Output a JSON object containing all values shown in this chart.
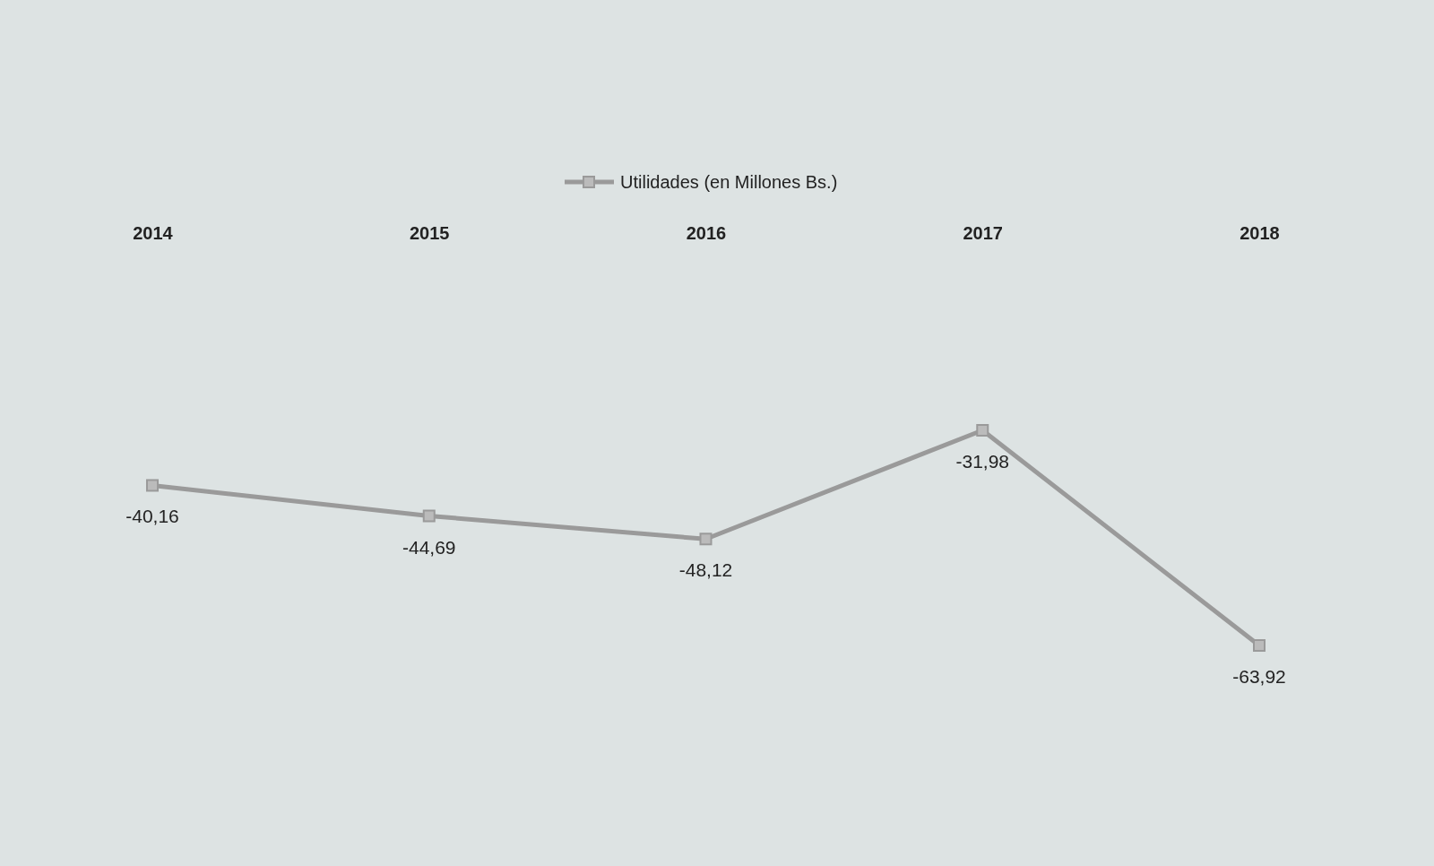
{
  "chart_data": {
    "type": "line",
    "categories": [
      "2014",
      "2015",
      "2016",
      "2017",
      "2018"
    ],
    "series": [
      {
        "name": "Utilidades (en Millones Bs.)",
        "color": "#9a9a9a",
        "values": [
          -40.16,
          -44.69,
          -48.12,
          -31.98,
          -63.92
        ],
        "value_labels": [
          "-40,16",
          "-44,69",
          "-48,12",
          "-31,98",
          "-63,92"
        ]
      }
    ],
    "marker": "square",
    "legend": "top",
    "grid": false
  }
}
